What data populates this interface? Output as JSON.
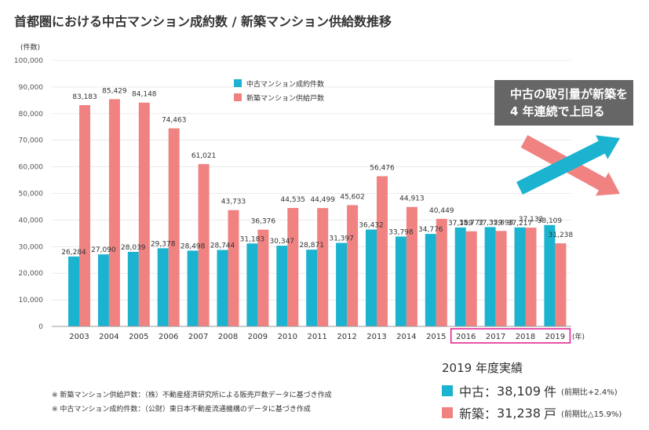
{
  "title": "首都圏における中古マンション成約数 / 新築マンション供給数推移",
  "callout": {
    "line1": "中古の取引量が新築を",
    "line2": "4 年連続で上回る"
  },
  "colors": {
    "used": "#1bb3cf",
    "new": "#f08282",
    "axis": "#999999",
    "grid": "#dddddd",
    "highlight": "#e0198c",
    "arrow_used": "#1bb3cf",
    "arrow_new": "#f08282"
  },
  "chart_data": {
    "type": "bar",
    "title": "首都圏における中古マンション成約数 / 新築マンション供給数推移",
    "ylabel": "(件数)",
    "xlabel": "(年)",
    "ylim": [
      0,
      100000
    ],
    "yticks": [
      "0",
      "10,000",
      "20,000",
      "30,000",
      "40,000",
      "50,000",
      "60,000",
      "70,000",
      "80,000",
      "90,000",
      "100,000"
    ],
    "categories": [
      "2003",
      "2004",
      "2005",
      "2006",
      "2007",
      "2008",
      "2009",
      "2010",
      "2011",
      "2012",
      "2013",
      "2014",
      "2015",
      "2016",
      "2017",
      "2018",
      "2019"
    ],
    "highlighted_categories": [
      "2016",
      "2017",
      "2018",
      "2019"
    ],
    "series": [
      {
        "name": "中古マンション成約件数",
        "values": [
          26284,
          27090,
          28039,
          29378,
          28498,
          28744,
          31183,
          30347,
          28871,
          31397,
          36432,
          33798,
          34776,
          37189,
          37329,
          37217,
          38109
        ],
        "labels": [
          "26,284",
          "27,090",
          "28,039",
          "29,378",
          "28,498",
          "28,744",
          "31,183",
          "30,347",
          "28,871",
          "31,397",
          "36,432",
          "33,798",
          "34,776",
          "37,189",
          "37,329",
          "37,217",
          "38,109"
        ]
      },
      {
        "name": "新築マンション供給戸数",
        "values": [
          83183,
          85429,
          84148,
          74463,
          61021,
          43733,
          36376,
          44535,
          44499,
          45602,
          56476,
          44913,
          40449,
          35772,
          35898,
          37132,
          31238
        ],
        "labels": [
          "83,183",
          "85,429",
          "84,148",
          "74,463",
          "61,021",
          "43,733",
          "36,376",
          "44,535",
          "44,499",
          "45,602",
          "56,476",
          "44,913",
          "40,449",
          "35,772",
          "35,898",
          "37,132",
          "31,238"
        ]
      }
    ]
  },
  "summary": {
    "title": "2019 年度実績",
    "used": {
      "label": "中古：",
      "value": "38,109",
      "unit": "件",
      "change": "(前期比+2.4%)"
    },
    "new": {
      "label": "新築：",
      "value": "31,238",
      "unit": "戸",
      "change": "(前期比△15.9%)"
    }
  },
  "notes": [
    "※ 新築マンション供給戸数：（株）不動産経済研究所による販売戸数データに基づき作成",
    "※ 中古マンション成約件数：（公財）東日本不動産流通機構のデータに基づき作成"
  ]
}
